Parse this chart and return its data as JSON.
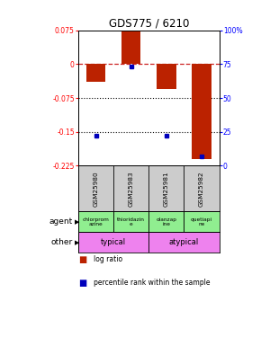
{
  "title": "GDS775 / 6210",
  "samples": [
    "GSM25980",
    "GSM25983",
    "GSM25981",
    "GSM25982"
  ],
  "log_ratios": [
    -0.04,
    0.075,
    -0.055,
    -0.21
  ],
  "percentile_ranks": [
    0.22,
    0.73,
    0.22,
    0.07
  ],
  "ylim_left": [
    -0.225,
    0.075
  ],
  "ylim_right": [
    0,
    100
  ],
  "yticks_left": [
    0.075,
    0,
    -0.075,
    -0.15,
    -0.225
  ],
  "yticks_right": [
    100,
    75,
    50,
    25,
    0
  ],
  "ytick_labels_left": [
    "0.075",
    "0",
    "-0.075",
    "-0.15",
    "-0.225"
  ],
  "ytick_labels_right": [
    "100%",
    "75",
    "50",
    "25",
    "0"
  ],
  "hlines_dotted": [
    -0.075,
    -0.15
  ],
  "agents": [
    "chlorprom\nazine",
    "thioridazin\ne",
    "olanzap\nine",
    "quetiapi\nne"
  ],
  "agent_colors": [
    "#90ee90",
    "#90ee90",
    "#90ee90",
    "#90ee90"
  ],
  "other_groups": [
    [
      "typical",
      2
    ],
    [
      "atypical",
      2
    ]
  ],
  "other_color": "#ee82ee",
  "bar_color": "#bb2200",
  "dot_color": "#0000bb",
  "bar_width": 0.55,
  "zero_line_color": "#cc2222",
  "grid_color": "#000000",
  "bg_color": "#ffffff",
  "gsm_bg": "#cccccc"
}
